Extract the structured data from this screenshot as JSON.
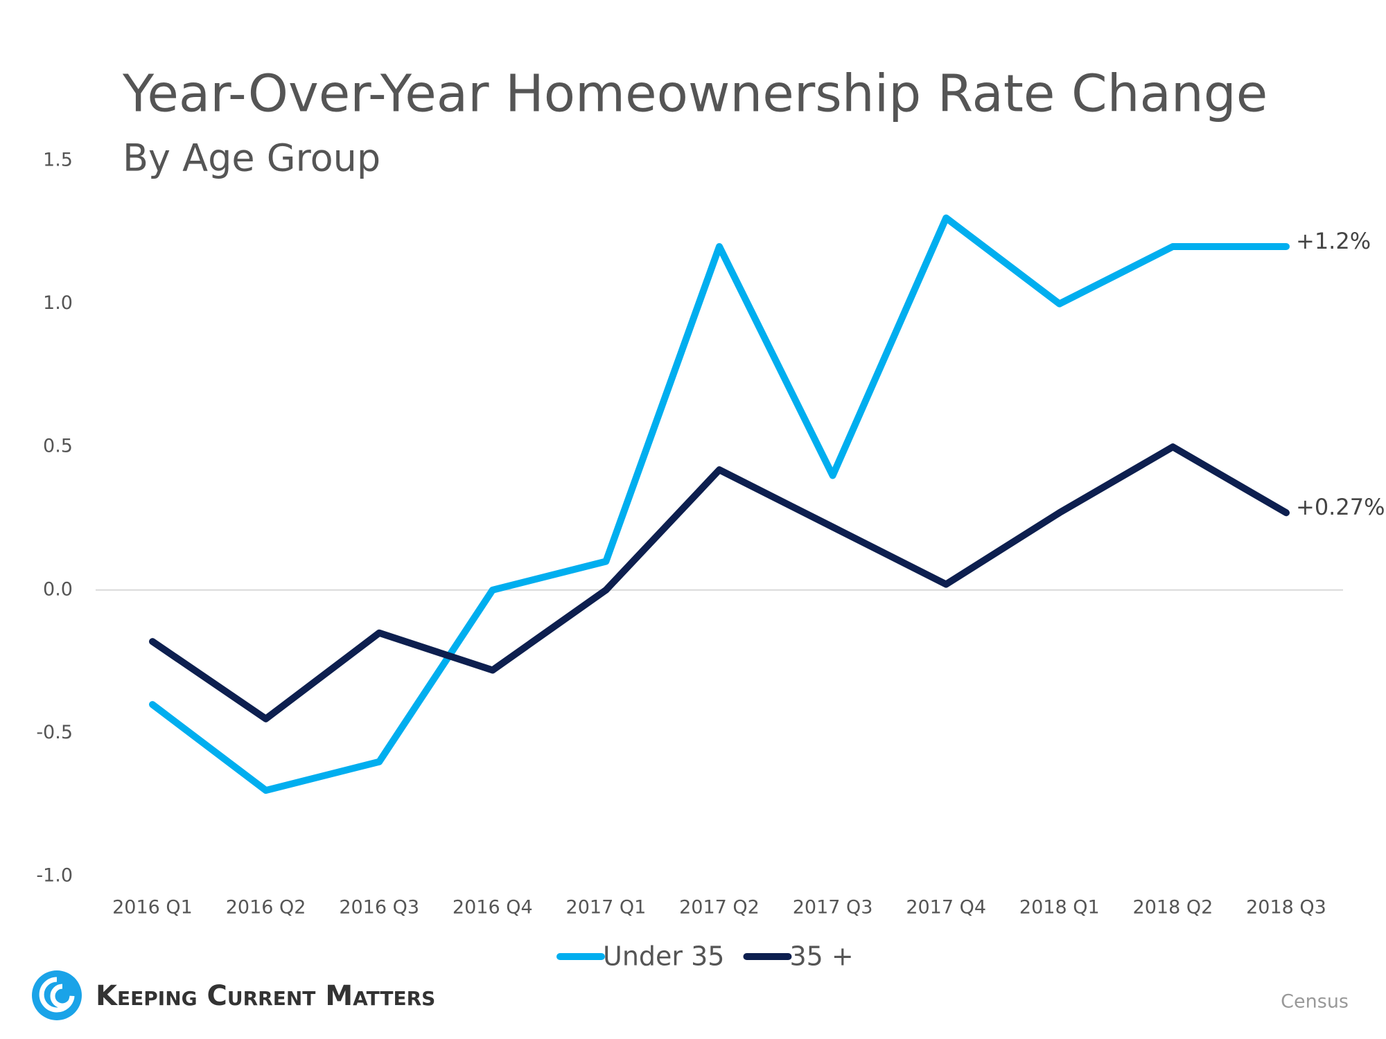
{
  "chart_data": {
    "type": "line",
    "title": "Year-Over-Year Homeownership Rate Change",
    "subtitle": "By Age Group",
    "categories": [
      "2016 Q1",
      "2016 Q2",
      "2016 Q3",
      "2016 Q4",
      "2017 Q1",
      "2017 Q2",
      "2017 Q3",
      "2017 Q4",
      "2018 Q1",
      "2018 Q2",
      "2018 Q3"
    ],
    "series": [
      {
        "name": "Under 35",
        "color": "#00aeef",
        "values": [
          -0.4,
          -0.7,
          -0.6,
          0,
          0.1,
          1.2,
          0.4,
          1.3,
          1.0,
          1.2,
          1.2
        ],
        "value_labels": [
          null,
          null,
          null,
          null,
          null,
          null,
          null,
          null,
          null,
          null,
          "+1.2%"
        ]
      },
      {
        "name": "35 +",
        "color": "#0d1f4f",
        "values": [
          -0.18,
          -0.45,
          -0.15,
          -0.28,
          0,
          0.42,
          0.22,
          0.02,
          0.27,
          0.5,
          0.27
        ],
        "value_labels": [
          null,
          null,
          null,
          null,
          null,
          null,
          null,
          null,
          null,
          null,
          "+0.27%"
        ]
      }
    ],
    "ylim": [
      -1,
      1.5
    ],
    "yticks": [
      {
        "value": -1,
        "label": "-1.0"
      },
      -0.5,
      {
        "value": 0,
        "label": "0.0"
      },
      0.5,
      {
        "value": 1,
        "label": "1.0"
      },
      1.5
    ],
    "grid": false,
    "zero_line": true,
    "legend": "bottom",
    "logo": "Keeping Current Matters",
    "source": "Census"
  }
}
